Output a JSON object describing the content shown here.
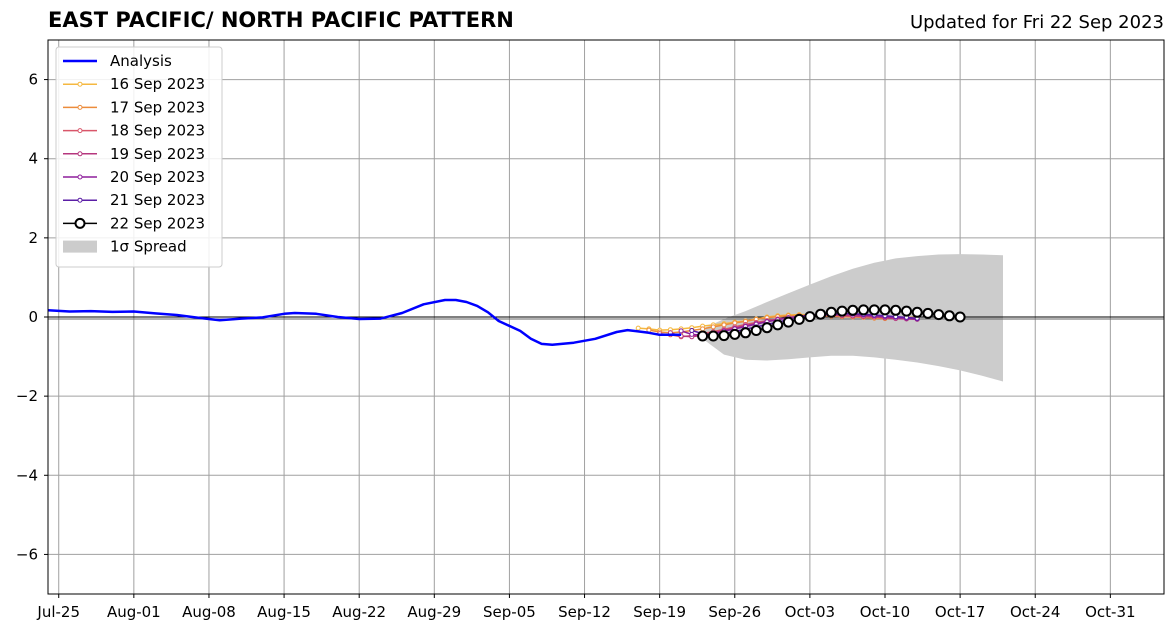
{
  "chart_data": {
    "type": "line",
    "title": "EAST PACIFIC/ NORTH PACIFIC PATTERN",
    "subtitle": "Updated for Fri 22 Sep 2023",
    "ylim": [
      -7,
      7
    ],
    "yticks": [
      -6,
      -4,
      -2,
      0,
      2,
      4,
      6
    ],
    "ytick_labels": [
      "−6",
      "−4",
      "−2",
      "0",
      "2",
      "4",
      "6"
    ],
    "xlim": [
      "2023-07-24",
      "2023-11-05"
    ],
    "xticks": [
      "2023-07-25",
      "2023-08-01",
      "2023-08-08",
      "2023-08-15",
      "2023-08-22",
      "2023-08-29",
      "2023-09-05",
      "2023-09-12",
      "2023-09-19",
      "2023-09-26",
      "2023-10-03",
      "2023-10-10",
      "2023-10-17",
      "2023-10-24",
      "2023-10-31"
    ],
    "xtick_labels": [
      "Jul-25",
      "Aug-01",
      "Aug-08",
      "Aug-15",
      "Aug-22",
      "Aug-29",
      "Sep-05",
      "Sep-12",
      "Sep-19",
      "Sep-26",
      "Oct-03",
      "Oct-10",
      "Oct-17",
      "Oct-24",
      "Oct-31"
    ],
    "grid": true,
    "zero_line": true,
    "legend_position": "upper-left",
    "analysis": {
      "name": "Analysis",
      "color": "#0000ff",
      "points": [
        [
          "2023-07-24",
          0.17
        ],
        [
          "2023-07-26",
          0.14
        ],
        [
          "2023-07-28",
          0.15
        ],
        [
          "2023-07-30",
          0.13
        ],
        [
          "2023-08-01",
          0.14
        ],
        [
          "2023-08-03",
          0.09
        ],
        [
          "2023-08-05",
          0.05
        ],
        [
          "2023-08-07",
          -0.02
        ],
        [
          "2023-08-09",
          -0.08
        ],
        [
          "2023-08-11",
          -0.04
        ],
        [
          "2023-08-13",
          -0.01
        ],
        [
          "2023-08-15",
          0.08
        ],
        [
          "2023-08-16",
          0.1
        ],
        [
          "2023-08-18",
          0.08
        ],
        [
          "2023-08-20",
          0.0
        ],
        [
          "2023-08-22",
          -0.05
        ],
        [
          "2023-08-24",
          -0.04
        ],
        [
          "2023-08-26",
          0.1
        ],
        [
          "2023-08-28",
          0.32
        ],
        [
          "2023-08-30",
          0.43
        ],
        [
          "2023-08-31",
          0.43
        ],
        [
          "2023-09-01",
          0.38
        ],
        [
          "2023-09-02",
          0.28
        ],
        [
          "2023-09-03",
          0.12
        ],
        [
          "2023-09-04",
          -0.1
        ],
        [
          "2023-09-06",
          -0.35
        ],
        [
          "2023-09-07",
          -0.55
        ],
        [
          "2023-09-08",
          -0.68
        ],
        [
          "2023-09-09",
          -0.7
        ],
        [
          "2023-09-11",
          -0.65
        ],
        [
          "2023-09-13",
          -0.55
        ],
        [
          "2023-09-15",
          -0.38
        ],
        [
          "2023-09-16",
          -0.33
        ],
        [
          "2023-09-18",
          -0.4
        ],
        [
          "2023-09-19",
          -0.45
        ],
        [
          "2023-09-21",
          -0.45
        ]
      ]
    },
    "series": [
      {
        "name": "16 Sep 2023",
        "color": "#f5b840",
        "start": "2023-09-17",
        "values": [
          -0.28,
          -0.3,
          -0.33,
          -0.32,
          -0.3,
          -0.27,
          -0.23,
          -0.2,
          -0.17,
          -0.13,
          -0.1,
          -0.05,
          0.0,
          0.03,
          0.05,
          0.06,
          0.06,
          0.05,
          0.04,
          0.03,
          0.02,
          0.0,
          -0.02,
          -0.02,
          -0.01,
          0.0,
          -0.02
        ]
      },
      {
        "name": "17 Sep 2023",
        "color": "#ec8c3c",
        "start": "2023-09-18",
        "values": [
          -0.33,
          -0.38,
          -0.4,
          -0.38,
          -0.34,
          -0.3,
          -0.25,
          -0.2,
          -0.15,
          -0.11,
          -0.06,
          -0.02,
          0.01,
          0.03,
          0.04,
          0.04,
          0.03,
          0.02,
          0.01,
          0.0,
          -0.01,
          -0.03,
          -0.04,
          -0.03,
          -0.02,
          -0.03
        ]
      },
      {
        "name": "18 Sep 2023",
        "color": "#d9566a",
        "start": "2023-09-19",
        "values": [
          -0.42,
          -0.45,
          -0.5,
          -0.47,
          -0.42,
          -0.37,
          -0.31,
          -0.25,
          -0.19,
          -0.14,
          -0.09,
          -0.05,
          -0.02,
          0.01,
          0.03,
          0.04,
          0.04,
          0.03,
          0.02,
          0.01,
          0.0,
          -0.02,
          -0.03,
          -0.04,
          -0.05
        ]
      },
      {
        "name": "19 Sep 2023",
        "color": "#b5377e",
        "start": "2023-09-20",
        "values": [
          -0.4,
          -0.48,
          -0.5,
          -0.46,
          -0.4,
          -0.34,
          -0.28,
          -0.22,
          -0.16,
          -0.11,
          -0.06,
          -0.02,
          0.01,
          0.03,
          0.05,
          0.05,
          0.04,
          0.03,
          0.02,
          0.0,
          -0.02,
          -0.04,
          -0.05,
          -0.06
        ]
      },
      {
        "name": "20 Sep 2023",
        "color": "#8e1f9c",
        "start": "2023-09-21",
        "values": [
          -0.35,
          -0.44,
          -0.46,
          -0.42,
          -0.36,
          -0.3,
          -0.24,
          -0.18,
          -0.12,
          -0.07,
          -0.02,
          0.02,
          0.05,
          0.07,
          0.08,
          0.08,
          0.07,
          0.05,
          0.03,
          0.01,
          -0.01,
          -0.03,
          -0.05
        ]
      },
      {
        "name": "21 Sep 2023",
        "color": "#5b1ea6",
        "start": "2023-09-22",
        "values": [
          -0.34,
          -0.42,
          -0.45,
          -0.42,
          -0.37,
          -0.31,
          -0.25,
          -0.19,
          -0.13,
          -0.07,
          -0.02,
          0.02,
          0.05,
          0.07,
          0.08,
          0.08,
          0.07,
          0.05,
          0.03,
          0.01,
          -0.01,
          -0.03
        ]
      },
      {
        "name": "22 Sep 2023",
        "color": "#000000",
        "start": "2023-09-23",
        "values": [
          -0.48,
          -0.48,
          -0.47,
          -0.44,
          -0.4,
          -0.34,
          -0.27,
          -0.2,
          -0.13,
          -0.06,
          0.01,
          0.07,
          0.12,
          0.15,
          0.17,
          0.18,
          0.18,
          0.18,
          0.17,
          0.15,
          0.12,
          0.09,
          0.06,
          0.03,
          0.0
        ]
      }
    ],
    "spread": {
      "name": "1σ Spread",
      "color": "#cccccc",
      "points": [
        [
          "2023-09-23",
          -0.55,
          -0.3
        ],
        [
          "2023-09-25",
          -0.95,
          -0.05
        ],
        [
          "2023-09-27",
          -1.08,
          0.15
        ],
        [
          "2023-09-29",
          -1.1,
          0.38
        ],
        [
          "2023-10-01",
          -1.07,
          0.6
        ],
        [
          "2023-10-03",
          -1.02,
          0.82
        ],
        [
          "2023-10-05",
          -0.98,
          1.03
        ],
        [
          "2023-10-07",
          -0.98,
          1.22
        ],
        [
          "2023-10-09",
          -1.02,
          1.37
        ],
        [
          "2023-10-11",
          -1.08,
          1.48
        ],
        [
          "2023-10-13",
          -1.15,
          1.54
        ],
        [
          "2023-10-15",
          -1.24,
          1.58
        ],
        [
          "2023-10-17",
          -1.35,
          1.59
        ],
        [
          "2023-10-19",
          -1.48,
          1.58
        ],
        [
          "2023-10-21",
          -1.63,
          1.56
        ]
      ]
    }
  }
}
